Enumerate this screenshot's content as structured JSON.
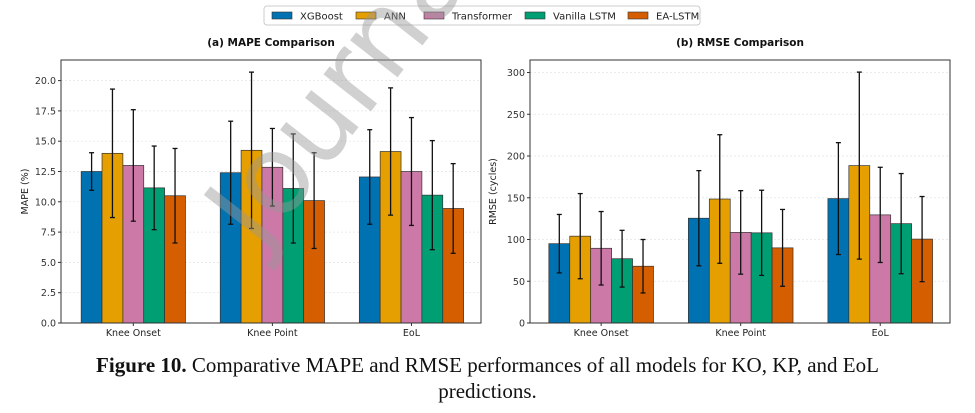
{
  "legend": {
    "items": [
      "XGBoost",
      "ANN",
      "Transformer",
      "Vanilla LSTM",
      "EA-LSTM"
    ],
    "colors": [
      "#0072b2",
      "#e69f00",
      "#cc79a7",
      "#009e73",
      "#d55e00"
    ]
  },
  "chart_data": [
    {
      "type": "bar",
      "title": "(a) MAPE Comparison",
      "ylabel": "MAPE (%)",
      "xlabel": "",
      "categories": [
        "Knee Onset",
        "Knee Point",
        "EoL"
      ],
      "ylim": [
        0,
        21.7
      ],
      "yticks": [
        "0.0",
        "2.5",
        "5.0",
        "7.5",
        "10.0",
        "12.5",
        "15.0",
        "17.5",
        "20.0"
      ],
      "grid": "horizontal dashed",
      "series": [
        {
          "name": "XGBoost",
          "values": [
            12.5,
            12.4,
            12.05
          ],
          "errors": [
            1.55,
            4.25,
            3.9
          ]
        },
        {
          "name": "ANN",
          "values": [
            14.0,
            14.25,
            14.15
          ],
          "errors": [
            5.3,
            6.45,
            5.25
          ]
        },
        {
          "name": "Transformer",
          "values": [
            13.0,
            12.85,
            12.5
          ],
          "errors": [
            4.6,
            3.2,
            4.45
          ]
        },
        {
          "name": "Vanilla LSTM",
          "values": [
            11.15,
            11.1,
            10.55
          ],
          "errors": [
            3.45,
            4.5,
            4.5
          ]
        },
        {
          "name": "EA-LSTM",
          "values": [
            10.5,
            10.1,
            9.45
          ],
          "errors": [
            3.9,
            3.95,
            3.7
          ]
        }
      ]
    },
    {
      "type": "bar",
      "title": "(b) RMSE Comparison",
      "ylabel": "RMSE (cycles)",
      "xlabel": "",
      "categories": [
        "Knee Onset",
        "Knee Point",
        "EoL"
      ],
      "ylim": [
        0,
        315
      ],
      "yticks": [
        "0",
        "50",
        "100",
        "150",
        "200",
        "250",
        "300"
      ],
      "grid": "horizontal dashed",
      "series": [
        {
          "name": "XGBoost",
          "values": [
            95,
            125.5,
            149
          ],
          "errors": [
            35,
            57,
            67
          ]
        },
        {
          "name": "ANN",
          "values": [
            104,
            148.5,
            188.5
          ],
          "errors": [
            51,
            77,
            112
          ]
        },
        {
          "name": "Transformer",
          "values": [
            89.5,
            108.5,
            129.5
          ],
          "errors": [
            44,
            50,
            57
          ]
        },
        {
          "name": "Vanilla LSTM",
          "values": [
            77,
            108,
            119
          ],
          "errors": [
            34,
            51,
            60
          ]
        },
        {
          "name": "EA-LSTM",
          "values": [
            68,
            90,
            100.5
          ],
          "errors": [
            32,
            46,
            51
          ]
        }
      ]
    }
  ],
  "caption": {
    "label": "Figure 10.",
    "text_line1": " Comparative MAPE and RMSE performances of all models for KO, KP, and EoL",
    "text_line2": "predictions."
  },
  "watermark": "Journal Pre-proof"
}
